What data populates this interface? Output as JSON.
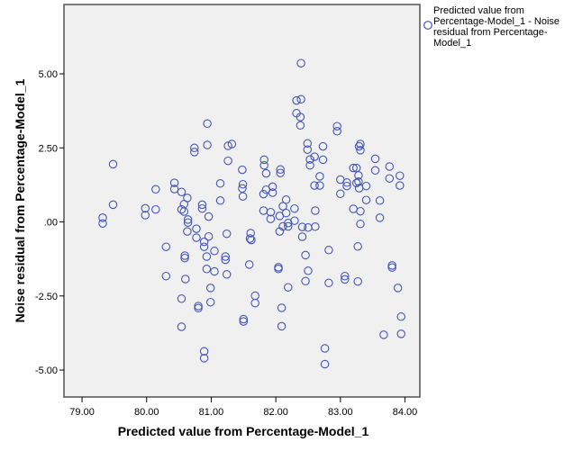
{
  "chart_data": {
    "type": "scatter",
    "title": "",
    "xlabel": "Predicted value from Percentage-Model_1",
    "ylabel": "Noise residual from Percentage-Model_1",
    "xlim": [
      78.72,
      84.23
    ],
    "ylim": [
      -5.91,
      7.34
    ],
    "xticks": [
      79,
      80,
      81,
      82,
      83,
      84
    ],
    "xtick_labels": [
      "79.00",
      "80.00",
      "81.00",
      "82.00",
      "83.00",
      "84.00"
    ],
    "yticks": [
      5,
      2.5,
      0,
      -2.5,
      -5
    ],
    "ytick_labels": [
      "5.00",
      "2.50",
      ".00",
      "-2.50",
      "-5.00"
    ],
    "grid": false,
    "legend_position": "top-right",
    "marker": "open-circle",
    "colors": {
      "marker": "#4355b8",
      "plot_bg": "#f0f0f0",
      "frame": "#505050"
    },
    "series": [
      {
        "name": "Predicted value from Percentage-Model_1 - Noise residual from Percentage-Model_1",
        "legend_lines": [
          "Predicted value from",
          "Percentage-Model_1 - Noise",
          "residual from Percentage-",
          "Model_1"
        ],
        "points": [
          [
            80.94,
            3.32
          ],
          [
            80.94,
            2.6
          ],
          [
            80.74,
            2.5
          ],
          [
            80.74,
            2.36
          ],
          [
            81.26,
            2.57
          ],
          [
            81.32,
            2.63
          ],
          [
            81.26,
            2.06
          ],
          [
            81.48,
            1.76
          ],
          [
            79.48,
            1.95
          ],
          [
            80.43,
            1.32
          ],
          [
            80.43,
            1.11
          ],
          [
            80.14,
            1.1
          ],
          [
            80.54,
            1.01
          ],
          [
            81.14,
            1.3
          ],
          [
            81.49,
            1.27
          ],
          [
            81.48,
            1.13
          ],
          [
            81.49,
            0.86
          ],
          [
            80.63,
            0.81
          ],
          [
            81.14,
            0.72
          ],
          [
            79.48,
            0.58
          ],
          [
            79.98,
            0.46
          ],
          [
            80.14,
            0.42
          ],
          [
            80.58,
            0.6
          ],
          [
            80.54,
            0.42
          ],
          [
            80.58,
            0.35
          ],
          [
            80.86,
            0.58
          ],
          [
            80.86,
            0.45
          ],
          [
            79.98,
            0.23
          ],
          [
            79.32,
            0.14
          ],
          [
            79.32,
            -0.05
          ],
          [
            80.96,
            0.18
          ],
          [
            80.64,
            0.08
          ],
          [
            80.64,
            -0.02
          ],
          [
            80.63,
            -0.32
          ],
          [
            80.77,
            -0.23
          ],
          [
            80.77,
            -0.53
          ],
          [
            80.96,
            -0.49
          ],
          [
            81.24,
            -0.4
          ],
          [
            80.89,
            -0.67
          ],
          [
            80.89,
            -0.84
          ],
          [
            80.3,
            -0.84
          ],
          [
            81.05,
            -0.98
          ],
          [
            81.61,
            -0.38
          ],
          [
            81.6,
            -0.56
          ],
          [
            80.59,
            -1.14
          ],
          [
            80.59,
            -1.22
          ],
          [
            80.93,
            -1.17
          ],
          [
            81.22,
            -1.17
          ],
          [
            81.22,
            -1.28
          ],
          [
            81.59,
            -1.44
          ],
          [
            80.93,
            -1.59
          ],
          [
            81.05,
            -1.67
          ],
          [
            81.24,
            -1.77
          ],
          [
            80.3,
            -1.83
          ],
          [
            80.6,
            -1.93
          ],
          [
            80.99,
            -2.23
          ],
          [
            80.54,
            -2.59
          ],
          [
            80.99,
            -2.71
          ],
          [
            80.8,
            -2.84
          ],
          [
            80.8,
            -2.91
          ],
          [
            81.5,
            -3.28
          ],
          [
            81.5,
            -3.36
          ],
          [
            80.54,
            -3.54
          ],
          [
            80.89,
            -4.37
          ],
          [
            80.89,
            -4.6
          ],
          [
            82.39,
            5.36
          ],
          [
            82.32,
            4.1
          ],
          [
            82.39,
            4.14
          ],
          [
            82.32,
            3.67
          ],
          [
            82.38,
            3.54
          ],
          [
            82.38,
            3.26
          ],
          [
            82.95,
            3.23
          ],
          [
            82.95,
            3.06
          ],
          [
            82.49,
            2.65
          ],
          [
            82.49,
            2.44
          ],
          [
            82.73,
            2.55
          ],
          [
            83.29,
            2.55
          ],
          [
            83.31,
            2.63
          ],
          [
            83.31,
            2.42
          ],
          [
            82.6,
            2.2
          ],
          [
            82.53,
            2.11
          ],
          [
            82.73,
            2.1
          ],
          [
            82.53,
            1.91
          ],
          [
            81.82,
            2.1
          ],
          [
            81.82,
            1.91
          ],
          [
            83.54,
            2.13
          ],
          [
            83.76,
            1.87
          ],
          [
            83.2,
            1.82
          ],
          [
            83.25,
            1.82
          ],
          [
            82.07,
            1.77
          ],
          [
            82.07,
            1.65
          ],
          [
            83.54,
            1.74
          ],
          [
            81.85,
            1.64
          ],
          [
            82.68,
            1.54
          ],
          [
            83.28,
            1.57
          ],
          [
            83.0,
            1.43
          ],
          [
            83.1,
            1.33
          ],
          [
            83.1,
            1.21
          ],
          [
            83.25,
            1.31
          ],
          [
            83.28,
            1.36
          ],
          [
            83.29,
            1.14
          ],
          [
            83.4,
            1.21
          ],
          [
            83.76,
            1.47
          ],
          [
            83.92,
            1.56
          ],
          [
            83.92,
            1.23
          ],
          [
            82.6,
            1.23
          ],
          [
            82.68,
            1.23
          ],
          [
            81.85,
            1.09
          ],
          [
            81.95,
            1.19
          ],
          [
            81.95,
            0.99
          ],
          [
            81.81,
            0.94
          ],
          [
            83.0,
            0.95
          ],
          [
            82.16,
            0.75
          ],
          [
            82.11,
            0.53
          ],
          [
            82.29,
            0.45
          ],
          [
            81.81,
            0.38
          ],
          [
            81.92,
            0.33
          ],
          [
            82.16,
            0.3
          ],
          [
            82.06,
            0.2
          ],
          [
            81.92,
            0.1
          ],
          [
            82.29,
            0.04
          ],
          [
            82.19,
            -0.04
          ],
          [
            82.19,
            -0.15
          ],
          [
            82.11,
            -0.15
          ],
          [
            82.06,
            -0.32
          ],
          [
            82.41,
            -0.17
          ],
          [
            82.5,
            -0.19
          ],
          [
            82.61,
            -0.16
          ],
          [
            82.61,
            0.38
          ],
          [
            82.41,
            -0.5
          ],
          [
            83.4,
            0.74
          ],
          [
            83.61,
            0.72
          ],
          [
            83.2,
            0.44
          ],
          [
            83.31,
            0.36
          ],
          [
            83.61,
            0.14
          ],
          [
            83.31,
            -0.07
          ],
          [
            83.27,
            -0.83
          ],
          [
            82.82,
            -0.95
          ],
          [
            81.62,
            -0.61
          ],
          [
            82.46,
            -1.12
          ],
          [
            82.04,
            -1.53
          ],
          [
            82.04,
            -1.59
          ],
          [
            82.5,
            -1.65
          ],
          [
            82.46,
            -2.0
          ],
          [
            82.82,
            -2.06
          ],
          [
            83.07,
            -1.83
          ],
          [
            83.07,
            -1.94
          ],
          [
            83.27,
            -2.01
          ],
          [
            83.8,
            -1.47
          ],
          [
            83.8,
            -1.54
          ],
          [
            82.19,
            -2.21
          ],
          [
            83.89,
            -2.23
          ],
          [
            81.68,
            -2.49
          ],
          [
            81.68,
            -2.74
          ],
          [
            82.09,
            -2.9
          ],
          [
            82.09,
            -3.52
          ],
          [
            83.94,
            -3.2
          ],
          [
            83.67,
            -3.81
          ],
          [
            83.94,
            -3.78
          ],
          [
            82.76,
            -4.27
          ],
          [
            82.76,
            -4.8
          ]
        ]
      }
    ]
  }
}
